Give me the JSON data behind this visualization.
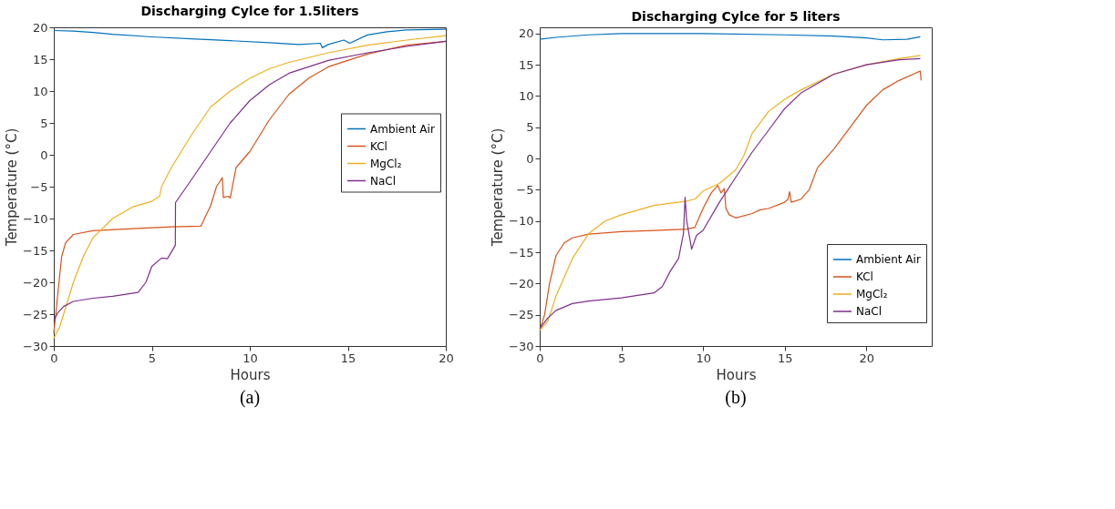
{
  "chart_data": [
    {
      "type": "line",
      "title": "Discharging Cylce for 1.5liters",
      "xlabel": "Hours",
      "ylabel": "Temperature (°C)",
      "xlim": [
        0,
        20
      ],
      "ylim": [
        -30,
        20
      ],
      "xticks": [
        0,
        5,
        10,
        15,
        20
      ],
      "yticks": [
        -30,
        -25,
        -20,
        -15,
        -10,
        -5,
        0,
        5,
        10,
        15,
        20
      ],
      "grid": false,
      "legend": "right",
      "line_style": "solid",
      "marker": "none",
      "annotations": [
        "(a)"
      ],
      "series": [
        {
          "name": "Ambient Air",
          "color": "#0072bd",
          "x": [
            0,
            1,
            2,
            3,
            5,
            7,
            9,
            11,
            12.5,
            13.6,
            13.7,
            14,
            14.8,
            15.1,
            16,
            17,
            18,
            20
          ],
          "values": [
            19.5,
            19.4,
            19.2,
            18.9,
            18.5,
            18.2,
            17.9,
            17.6,
            17.3,
            17.5,
            16.8,
            17.3,
            18.0,
            17.5,
            18.8,
            19.3,
            19.6,
            19.7
          ]
        },
        {
          "name": "KCl",
          "color": "#d95319",
          "x": [
            0,
            0.2,
            0.4,
            0.6,
            1,
            2,
            4,
            6,
            7.5,
            8,
            8.3,
            8.6,
            8.65,
            8.9,
            9,
            9.3,
            10,
            11,
            12,
            13,
            14,
            15,
            16,
            18,
            20
          ],
          "values": [
            -28,
            -22,
            -16,
            -13.8,
            -12.5,
            -11.9,
            -11.6,
            -11.3,
            -11.2,
            -8,
            -5,
            -3.6,
            -6.7,
            -6.5,
            -6.8,
            -2,
            0.5,
            5.5,
            9.5,
            12,
            13.8,
            14.8,
            15.8,
            17.2,
            17.8
          ]
        },
        {
          "name": "MgCl₂",
          "color": "#edb120",
          "x": [
            0,
            0.3,
            1,
            1.5,
            2,
            3,
            4,
            5,
            5.4,
            5.5,
            6,
            7,
            8,
            9,
            10,
            11,
            12,
            14,
            16,
            18,
            20
          ],
          "values": [
            -28.8,
            -27,
            -20,
            -16,
            -13,
            -10,
            -8.2,
            -7.3,
            -6.5,
            -5,
            -2,
            3,
            7.5,
            10,
            12,
            13.5,
            14.5,
            16,
            17.2,
            18,
            18.7
          ]
        },
        {
          "name": "NaCl",
          "color": "#7e2f8e",
          "x": [
            0,
            0.2,
            0.5,
            1,
            2,
            3,
            4.3,
            4.7,
            5,
            5.5,
            5.8,
            6.2,
            6.21,
            7,
            8,
            9,
            10,
            11,
            12,
            14,
            16,
            18,
            20
          ],
          "values": [
            -26,
            -24.8,
            -23.8,
            -23,
            -22.5,
            -22.2,
            -21.6,
            -20,
            -17.5,
            -16.2,
            -16.3,
            -14.2,
            -7.5,
            -4,
            0.5,
            5,
            8.5,
            11,
            12.8,
            14.8,
            16,
            17,
            17.8
          ]
        }
      ]
    },
    {
      "type": "line",
      "title": "Discharging Cylce for 5 liters",
      "xlabel": "Hours",
      "ylabel": "Temperature (°C)",
      "xlim": [
        0,
        24
      ],
      "ylim": [
        -30,
        21
      ],
      "xticks": [
        0,
        5,
        10,
        15,
        20
      ],
      "yticks": [
        -30,
        -25,
        -20,
        -15,
        -10,
        -5,
        0,
        5,
        10,
        15,
        20
      ],
      "grid": false,
      "legend": "bottom right",
      "line_style": "solid",
      "marker": "none",
      "annotations": [
        "(b)"
      ],
      "series": [
        {
          "name": "Ambient Air",
          "color": "#0072bd",
          "x": [
            0,
            1,
            3,
            5,
            10,
            15,
            18,
            20,
            21,
            22.5,
            23.3
          ],
          "values": [
            19.1,
            19.4,
            19.8,
            20.0,
            20.0,
            19.8,
            19.6,
            19.3,
            19.0,
            19.1,
            19.5
          ]
        },
        {
          "name": "KCl",
          "color": "#d95319",
          "x": [
            0,
            0.3,
            0.6,
            1,
            1.5,
            2,
            3,
            5,
            7,
            9,
            9.5,
            10,
            10.5,
            10.9,
            11.1,
            11.3,
            11.4,
            11.6,
            12,
            13,
            13.5,
            14,
            15,
            15.2,
            15.3,
            15.4,
            16,
            16.5,
            17,
            17.5,
            18,
            19,
            20,
            21,
            22,
            23.3,
            23.35
          ],
          "values": [
            -27.5,
            -25,
            -20,
            -15.5,
            -13.5,
            -12.7,
            -12.1,
            -11.7,
            -11.5,
            -11.3,
            -11,
            -8,
            -5.5,
            -4.3,
            -5.5,
            -4.8,
            -8,
            -9,
            -9.5,
            -8.8,
            -8.2,
            -8,
            -7,
            -6.5,
            -5.3,
            -7,
            -6.5,
            -5,
            -1.5,
            0,
            1.5,
            5,
            8.5,
            11,
            12.5,
            14,
            12.5
          ]
        },
        {
          "name": "MgCl₂",
          "color": "#edb120",
          "x": [
            0,
            0.5,
            1,
            2,
            3,
            4,
            5,
            7,
            9,
            9.5,
            10,
            11,
            12,
            12.5,
            13,
            14,
            15,
            16,
            18,
            20,
            22,
            23.3
          ],
          "values": [
            -27.5,
            -26,
            -22,
            -16,
            -12,
            -10,
            -9,
            -7.5,
            -6.8,
            -6.5,
            -5.2,
            -4,
            -1.8,
            0.5,
            4,
            7.5,
            9.5,
            11,
            13.5,
            15,
            16,
            16.5
          ]
        },
        {
          "name": "NaCl",
          "color": "#7e2f8e",
          "x": [
            0,
            0.5,
            1,
            2,
            3,
            5,
            7,
            7.5,
            8,
            8.5,
            8.8,
            8.9,
            9.0,
            9.3,
            9.6,
            10,
            11,
            12,
            13,
            14,
            15,
            16,
            18,
            20,
            22,
            23.3
          ],
          "values": [
            -27.2,
            -25.5,
            -24.3,
            -23.2,
            -22.8,
            -22.3,
            -21.5,
            -20.5,
            -18,
            -16,
            -12,
            -6.2,
            -10,
            -14.5,
            -12.3,
            -11.5,
            -7,
            -3,
            1,
            4.5,
            8,
            10.5,
            13.5,
            15,
            15.8,
            16
          ]
        }
      ]
    }
  ]
}
